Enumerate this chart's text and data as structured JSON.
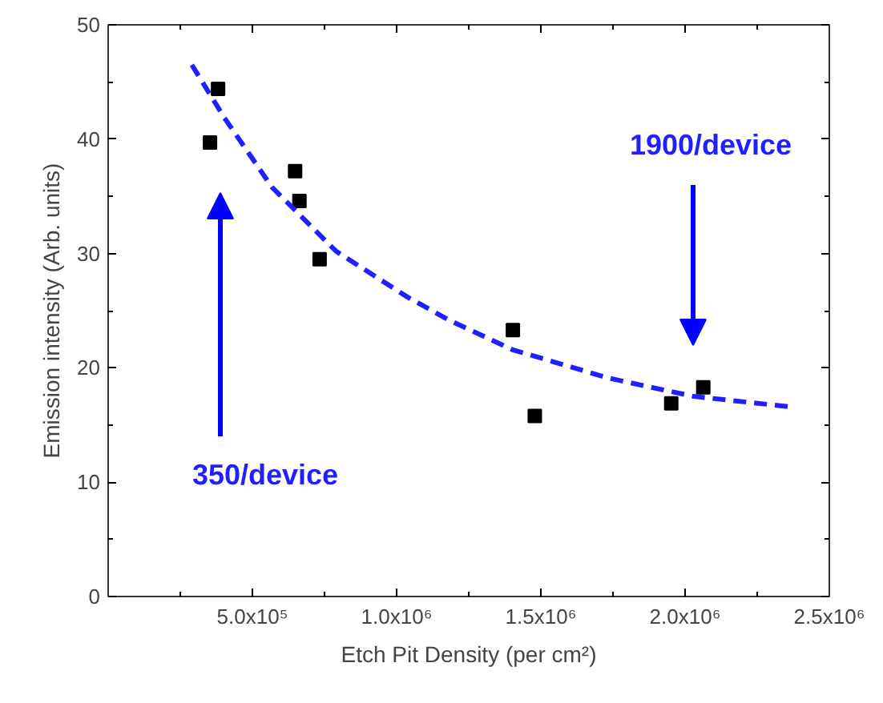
{
  "chart_data": {
    "type": "scatter",
    "xlabel": "Etch Pit Density (per cm²)",
    "ylabel": "Emission intensity (Arb. units)",
    "xlim": [
      0,
      2500000
    ],
    "ylim": [
      0,
      50
    ],
    "xticks": [
      {
        "value": 500000,
        "label": "5.0x10⁵"
      },
      {
        "value": 1000000,
        "label": "1.0x10⁶"
      },
      {
        "value": 1500000,
        "label": "1.5x10⁶"
      },
      {
        "value": 2000000,
        "label": "2.0x10⁶"
      },
      {
        "value": 2500000,
        "label": "2.5x10⁶"
      }
    ],
    "yticks": [
      0,
      10,
      20,
      30,
      40,
      50
    ],
    "grid": false,
    "series": [
      {
        "color": "#000000",
        "marker": "square",
        "x": [
          353000,
          381000,
          648000,
          663000,
          733000,
          1403000,
          1479000,
          1952000,
          2063000
        ],
        "values": [
          39.7,
          44.4,
          37.2,
          34.6,
          29.5,
          23.3,
          15.8,
          16.9,
          18.3
        ]
      },
      {
        "type": "line",
        "color": "#1f1fff",
        "line_style": "dashed",
        "marker": "none",
        "x": [
          290000,
          402000,
          568000,
          790000,
          1037000,
          1180000,
          1400000,
          1735000,
          2030000,
          2363000
        ],
        "values": [
          46.5,
          41.9,
          35.8,
          30.2,
          26.2,
          24.2,
          21.6,
          19.1,
          17.5,
          16.6
        ]
      }
    ],
    "annotations": [
      "350/device",
      "1900/device"
    ]
  }
}
